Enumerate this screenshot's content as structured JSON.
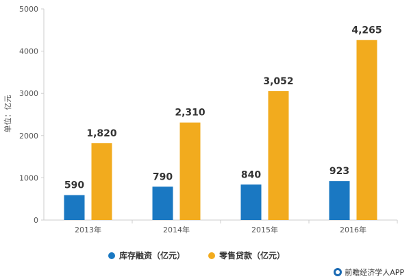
{
  "chart_data": {
    "type": "bar",
    "categories": [
      "2013年",
      "2014年",
      "2015年",
      "2016年"
    ],
    "series": [
      {
        "name": "库存融资（亿元）",
        "values": [
          590,
          790,
          840,
          923
        ],
        "color": "#1a78c2"
      },
      {
        "name": "零售贷款（亿元）",
        "values": [
          1820,
          2310,
          3052,
          4265
        ],
        "color": "#f2ab1e"
      }
    ],
    "data_labels": [
      [
        "590",
        "790",
        "840",
        "923"
      ],
      [
        "1,820",
        "2,310",
        "3,052",
        "4,265"
      ]
    ],
    "ylabel": "单位：亿元",
    "ylim": [
      0,
      5000
    ],
    "yticks": [
      0,
      1000,
      2000,
      3000,
      4000,
      5000
    ],
    "grid": false,
    "legend_position": "bottom"
  },
  "credit": {
    "icon": "qianzhan-logo-icon",
    "text": "前瞻经济学人APP"
  }
}
